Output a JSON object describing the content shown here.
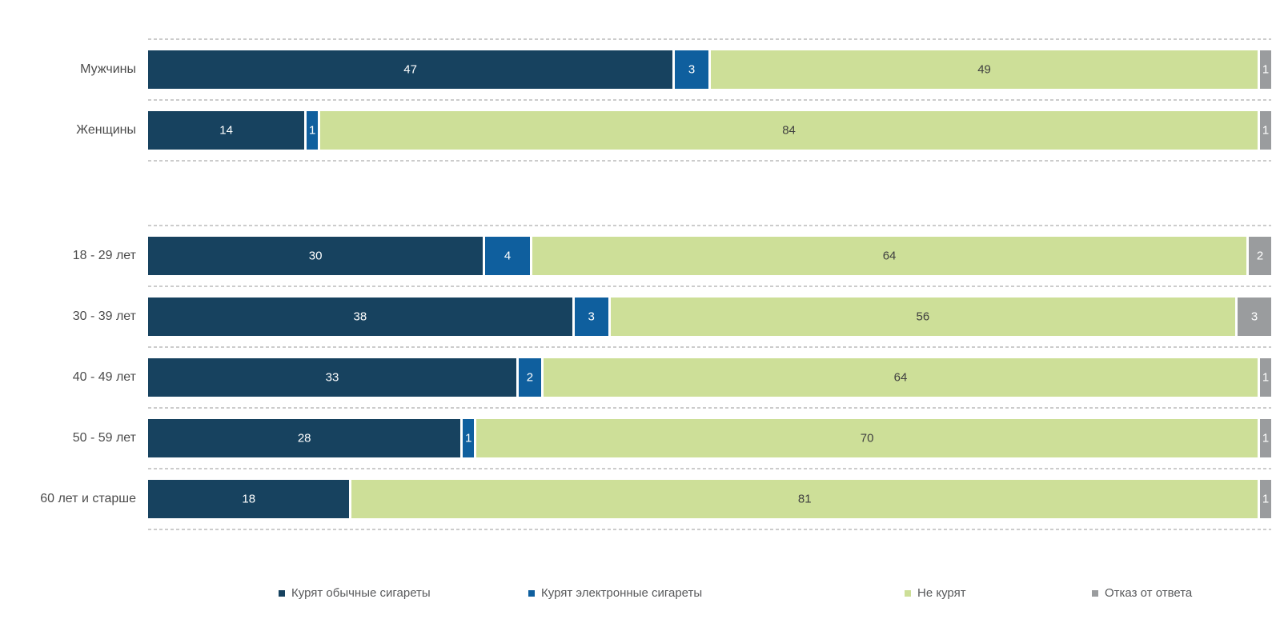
{
  "colors": {
    "background": "#ffffff",
    "grid_line": "#cccccc",
    "category_label": "#4c4c4c",
    "value_on_dark": "#ffffff",
    "value_on_light": "#404040",
    "legend_text": "#58595b"
  },
  "legend": {
    "items": [
      {
        "label": "Курят обычные сигареты",
        "color": "#17425f"
      },
      {
        "label": "Курят электронные сигареты",
        "color": "#0f5f9e"
      },
      {
        "label": "Не курят",
        "color": "#cddf98"
      },
      {
        "label": "Отказ от ответа",
        "color": "#9a9c9e"
      }
    ]
  },
  "chart_data": {
    "type": "bar",
    "stacked": true,
    "orientation": "horizontal",
    "value_unit": "percent",
    "xlim": [
      0,
      100
    ],
    "title": "",
    "xlabel": "",
    "ylabel": "",
    "legend_position": "bottom",
    "grid": "dashed horizontal separators between rows",
    "categories": [
      "Мужчины",
      "Женщины",
      "18 - 29 лет",
      "30 - 39 лет",
      "40 - 49 лет",
      "50 - 59 лет",
      "60 лет и старше"
    ],
    "category_groups": [
      [
        0,
        1
      ],
      [
        2,
        3,
        4,
        5,
        6
      ]
    ],
    "series": [
      {
        "name": "Курят обычные сигареты",
        "color": "#17425f",
        "value_label_color": "#ffffff",
        "values": [
          47,
          14,
          30,
          38,
          33,
          28,
          18
        ]
      },
      {
        "name": "Курят электронные сигареты",
        "color": "#0f5f9e",
        "value_label_color": "#ffffff",
        "values": [
          3,
          1,
          4,
          3,
          2,
          1,
          0
        ]
      },
      {
        "name": "Не курят",
        "color": "#cddf98",
        "value_label_color": "#404040",
        "values": [
          49,
          84,
          64,
          56,
          64,
          70,
          81
        ]
      },
      {
        "name": "Отказ от ответа",
        "color": "#9a9c9e",
        "value_label_color": "#ffffff",
        "values": [
          1,
          1,
          2,
          3,
          1,
          1,
          1
        ]
      }
    ]
  }
}
